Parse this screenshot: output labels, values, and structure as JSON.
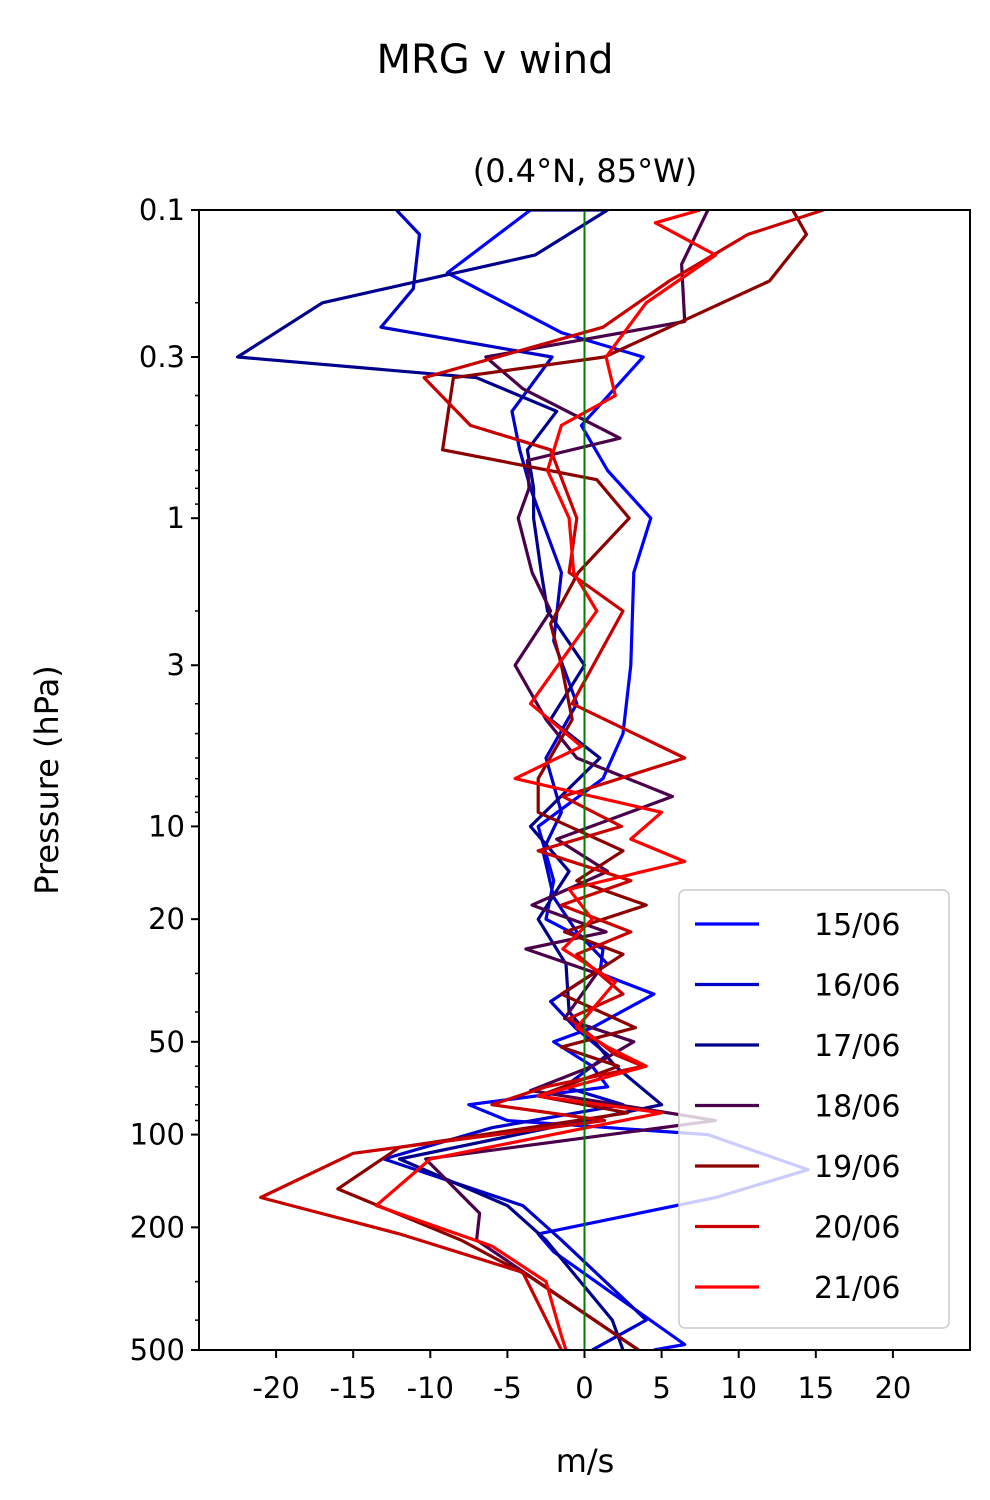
{
  "chart_data": {
    "type": "line",
    "title": "MRG v wind",
    "subtitle": "(0.4°N, 85°W)",
    "xlabel": "m/s",
    "ylabel": "Pressure (hPa)",
    "xlim": [
      -25,
      25
    ],
    "ylim": [
      500,
      0.1
    ],
    "yscale": "log",
    "grid": false,
    "legend_position": "lower right",
    "zero_line_color": "#007f00",
    "xticks": [
      -20,
      -15,
      -10,
      -5,
      0,
      5,
      10,
      15,
      20
    ],
    "xtick_labels": [
      "-20",
      "-15",
      "-10",
      "-5",
      "0",
      "5",
      "10",
      "15",
      "20"
    ],
    "yticks": [
      0.1,
      0.3,
      1,
      3,
      10,
      20,
      50,
      100,
      200,
      500
    ],
    "ytick_labels": [
      "0.1",
      "0.3",
      "1",
      "3",
      "10",
      "20",
      "50",
      "100",
      "200",
      "500"
    ],
    "series": [
      {
        "name": "15/06",
        "color": "#0000ff",
        "points": [
          [
            -3.5,
            0.1
          ],
          [
            -8.9,
            0.16
          ],
          [
            -1.5,
            0.25
          ],
          [
            3.8,
            0.3
          ],
          [
            -0.2,
            0.5
          ],
          [
            1.5,
            0.7
          ],
          [
            4.3,
            1.0
          ],
          [
            3.2,
            1.5
          ],
          [
            3.0,
            3.0
          ],
          [
            2.5,
            5.0
          ],
          [
            1.2,
            7.0
          ],
          [
            -3,
            10
          ],
          [
            -2,
            15
          ],
          [
            -2.5,
            20
          ],
          [
            1.2,
            25
          ],
          [
            1.0,
            30
          ],
          [
            4.5,
            35
          ],
          [
            0.5,
            45
          ],
          [
            -2,
            50
          ],
          [
            0.5,
            60
          ],
          [
            1.5,
            70
          ],
          [
            -7.5,
            80
          ],
          [
            -5,
            90
          ],
          [
            8,
            100
          ],
          [
            14.5,
            130
          ],
          [
            8.5,
            160
          ],
          [
            -3,
            210
          ],
          [
            -2,
            240
          ],
          [
            6.5,
            480
          ],
          [
            4.5,
            500
          ]
        ]
      },
      {
        "name": "16/06",
        "color": "#0000c8",
        "points": [
          [
            -12.2,
            0.1
          ],
          [
            -10.7,
            0.12
          ],
          [
            -11.1,
            0.18
          ],
          [
            -13.2,
            0.24
          ],
          [
            -2.1,
            0.3
          ],
          [
            -4.7,
            0.45
          ],
          [
            -4.2,
            0.6
          ],
          [
            -3.5,
            0.8
          ],
          [
            -2.8,
            1.0
          ],
          [
            -1.5,
            1.5
          ],
          [
            -2.0,
            2.5
          ],
          [
            -0.5,
            4.0
          ],
          [
            -2.5,
            6.0
          ],
          [
            -1.5,
            9
          ],
          [
            -2.7,
            12
          ],
          [
            -2,
            17
          ],
          [
            -0.5,
            22
          ],
          [
            1.5,
            28
          ],
          [
            -2.2,
            37
          ],
          [
            -0.6,
            45
          ],
          [
            1.5,
            55
          ],
          [
            -1.3,
            70
          ],
          [
            2.5,
            80
          ],
          [
            -6,
            95
          ],
          [
            -13,
            120
          ],
          [
            -4,
            170
          ],
          [
            -1.5,
            220
          ],
          [
            4,
            400
          ],
          [
            0.5,
            500
          ]
        ]
      },
      {
        "name": "17/06",
        "color": "#00008c",
        "points": [
          [
            -3.5,
            0.1
          ],
          [
            1.5,
            0.1
          ],
          [
            -3.2,
            0.14
          ],
          [
            -17,
            0.2
          ],
          [
            -22.5,
            0.3
          ],
          [
            -7,
            0.35
          ],
          [
            -1.8,
            0.45
          ],
          [
            -3.7,
            0.6
          ],
          [
            -3.3,
            0.8
          ],
          [
            -3.3,
            1.0
          ],
          [
            -2.8,
            1.5
          ],
          [
            -2.4,
            2.0
          ],
          [
            0,
            3.0
          ],
          [
            -2.2,
            4.5
          ],
          [
            1,
            6
          ],
          [
            -3.5,
            10
          ],
          [
            -1,
            14
          ],
          [
            -3,
            20
          ],
          [
            -1.2,
            28
          ],
          [
            -1,
            40
          ],
          [
            2,
            60
          ],
          [
            5,
            80
          ],
          [
            -12,
            120
          ],
          [
            -5,
            170
          ],
          [
            -2.5,
            220
          ],
          [
            1.8,
            400
          ],
          [
            2.5,
            500
          ]
        ]
      },
      {
        "name": "18/06",
        "color": "#4a004a",
        "points": [
          [
            8,
            0.1
          ],
          [
            6.3,
            0.15
          ],
          [
            6.5,
            0.23
          ],
          [
            -6.4,
            0.3
          ],
          [
            -4,
            0.38
          ],
          [
            2.3,
            0.55
          ],
          [
            -3.7,
            0.65
          ],
          [
            -3.6,
            0.8
          ],
          [
            -4.3,
            1.0
          ],
          [
            -3.4,
            1.5
          ],
          [
            -2.2,
            2.0
          ],
          [
            -4.5,
            3.0
          ],
          [
            -2.5,
            4.5
          ],
          [
            -0.5,
            6
          ],
          [
            5.7,
            8
          ],
          [
            -1.8,
            11
          ],
          [
            1.5,
            14
          ],
          [
            -3.4,
            18
          ],
          [
            1.4,
            22
          ],
          [
            -3.8,
            25
          ],
          [
            0.8,
            30
          ],
          [
            -1.3,
            42
          ],
          [
            3.2,
            50
          ],
          [
            0.5,
            60
          ],
          [
            -3.5,
            72
          ],
          [
            8.5,
            90
          ],
          [
            -10.3,
            120
          ],
          [
            -6.8,
            180
          ],
          [
            -7,
            220
          ],
          [
            3.5,
            500
          ]
        ]
      },
      {
        "name": "19/06",
        "color": "#8c0000",
        "points": [
          [
            13.5,
            0.1
          ],
          [
            14.4,
            0.12
          ],
          [
            12,
            0.17
          ],
          [
            1.3,
            0.3
          ],
          [
            -8.5,
            0.35
          ],
          [
            -9.2,
            0.6
          ],
          [
            0.8,
            0.75
          ],
          [
            2.9,
            1.0
          ],
          [
            -0.4,
            1.5
          ],
          [
            -2.2,
            2.2
          ],
          [
            -1.5,
            3.0
          ],
          [
            -0.8,
            4.5
          ],
          [
            -3,
            7
          ],
          [
            -3,
            9
          ],
          [
            2.5,
            12
          ],
          [
            -0.5,
            15
          ],
          [
            4,
            18
          ],
          [
            -1.3,
            22
          ],
          [
            2.5,
            26
          ],
          [
            -1.5,
            35
          ],
          [
            3.3,
            45
          ],
          [
            -1.5,
            52
          ],
          [
            2.2,
            60
          ],
          [
            -3,
            75
          ],
          [
            2.8,
            85
          ],
          [
            -12,
            110
          ],
          [
            -16,
            150
          ],
          [
            -8,
            220
          ],
          [
            -3.5,
            290
          ],
          [
            3.5,
            500
          ]
        ]
      },
      {
        "name": "20/06",
        "color": "#c80000",
        "points": [
          [
            15.5,
            0.1
          ],
          [
            10.6,
            0.12
          ],
          [
            5.5,
            0.17
          ],
          [
            1.2,
            0.24
          ],
          [
            -10.4,
            0.35
          ],
          [
            -7.4,
            0.5
          ],
          [
            -2.2,
            0.6
          ],
          [
            -0.5,
            1.0
          ],
          [
            -1,
            1.5
          ],
          [
            2.5,
            2.0
          ],
          [
            -0.8,
            4
          ],
          [
            6.5,
            6
          ],
          [
            -1.4,
            8
          ],
          [
            2.4,
            10
          ],
          [
            -3,
            12
          ],
          [
            3,
            15
          ],
          [
            -1.5,
            18
          ],
          [
            3,
            22
          ],
          [
            -0.5,
            26
          ],
          [
            2.5,
            35
          ],
          [
            -1,
            42
          ],
          [
            2,
            55
          ],
          [
            3.8,
            60
          ],
          [
            -2.5,
            70
          ],
          [
            -6,
            80
          ],
          [
            1.3,
            90
          ],
          [
            -15,
            115
          ],
          [
            -21,
            160
          ],
          [
            -12,
            210
          ],
          [
            -4,
            280
          ],
          [
            -1.5,
            500
          ]
        ]
      },
      {
        "name": "21/06",
        "color": "#ff0000",
        "points": [
          [
            7.5,
            0.1
          ],
          [
            4.6,
            0.11
          ],
          [
            8.5,
            0.14
          ],
          [
            4,
            0.2
          ],
          [
            1.4,
            0.3
          ],
          [
            2,
            0.4
          ],
          [
            -1.5,
            0.5
          ],
          [
            -2.4,
            0.7
          ],
          [
            -1,
            1.0
          ],
          [
            -0.7,
            1.5
          ],
          [
            0.8,
            2.0
          ],
          [
            -3.5,
            4.0
          ],
          [
            -0.2,
            5.5
          ],
          [
            -4.5,
            7
          ],
          [
            5,
            9
          ],
          [
            3,
            11
          ],
          [
            6.5,
            13
          ],
          [
            -1,
            16
          ],
          [
            0.5,
            20
          ],
          [
            -1.4,
            25
          ],
          [
            2,
            32
          ],
          [
            -0.5,
            45
          ],
          [
            1.5,
            52
          ],
          [
            4,
            60
          ],
          [
            -3,
            75
          ],
          [
            5,
            85
          ],
          [
            -10,
            120
          ],
          [
            -13.5,
            170
          ],
          [
            -6,
            230
          ],
          [
            -2.5,
            300
          ],
          [
            -1.5,
            450
          ],
          [
            -1.2,
            500
          ]
        ]
      }
    ]
  }
}
